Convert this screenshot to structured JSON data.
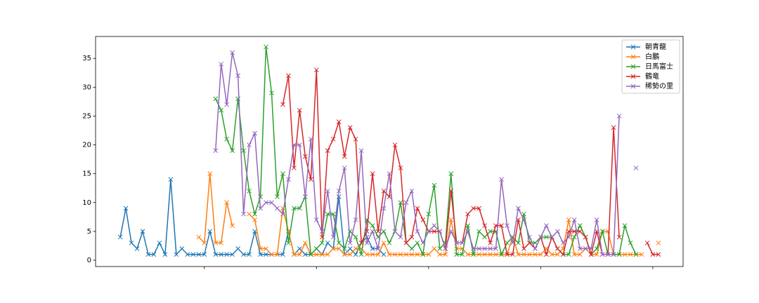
{
  "chart_data": {
    "type": "line",
    "x": [
      5,
      6,
      7,
      8,
      9,
      10,
      11,
      12,
      13,
      14,
      15,
      16,
      17,
      18,
      19,
      20,
      21,
      22,
      23,
      24,
      25,
      26,
      27,
      28,
      29,
      30,
      31,
      32,
      33,
      34,
      35,
      36,
      37,
      38,
      39,
      40,
      41,
      42,
      43,
      44,
      45,
      46,
      47,
      48,
      49,
      50,
      51,
      52,
      53,
      54,
      55,
      56,
      57,
      58,
      59,
      60,
      61,
      62,
      63,
      64,
      65,
      66,
      67,
      68,
      69,
      70,
      71,
      72,
      73,
      74,
      75,
      76,
      77,
      78,
      79,
      80,
      81,
      82,
      83,
      84,
      85,
      86,
      87,
      88,
      89,
      90,
      91,
      92,
      93,
      94,
      95,
      96,
      97,
      98,
      99,
      100,
      101
    ],
    "series": [
      {
        "name": "朝青龍",
        "color": "#1f77b4",
        "values": [
          4,
          9,
          3,
          2,
          5,
          1,
          1,
          3,
          1,
          14,
          1,
          2,
          1,
          1,
          1,
          1,
          5,
          1,
          1,
          1,
          1,
          2,
          1,
          1,
          5,
          1,
          1,
          1,
          1,
          1,
          5,
          1,
          2,
          1,
          1,
          2,
          1,
          3,
          2,
          11,
          1,
          2,
          1,
          3,
          4,
          2,
          2,
          1,
          null,
          null,
          null,
          null,
          null,
          null,
          null,
          null,
          null,
          null,
          null,
          null,
          null,
          null,
          null,
          null,
          null,
          null,
          null,
          null,
          null,
          null,
          null,
          null,
          null,
          null,
          null,
          null,
          null,
          null,
          null,
          null,
          null,
          null,
          null,
          null,
          null,
          null,
          null,
          null,
          null,
          null,
          null,
          null,
          null,
          null,
          null,
          null,
          null
        ]
      },
      {
        "name": "白鵬",
        "color": "#ff7f0e",
        "values": [
          null,
          null,
          null,
          null,
          null,
          null,
          null,
          null,
          null,
          null,
          null,
          null,
          null,
          null,
          4,
          3,
          15,
          3,
          3,
          10,
          6,
          null,
          null,
          8,
          7,
          2,
          2,
          1,
          1,
          9,
          5,
          1,
          1,
          3,
          1,
          1,
          1,
          1,
          2,
          2,
          1,
          1,
          2,
          2,
          1,
          1,
          1,
          3,
          1,
          1,
          1,
          1,
          1,
          1,
          1,
          1,
          2,
          1,
          1,
          7,
          2,
          2,
          1,
          1,
          1,
          1,
          1,
          1,
          1,
          1,
          4,
          1,
          1,
          1,
          1,
          1,
          2,
          1,
          1,
          2,
          7,
          1,
          1,
          2,
          1,
          1,
          5,
          5,
          1,
          1,
          1,
          1,
          1,
          1,
          null,
          null,
          3
        ]
      },
      {
        "name": "日馬富士",
        "color": "#2ca02c",
        "values": [
          null,
          null,
          null,
          null,
          null,
          null,
          null,
          null,
          null,
          null,
          null,
          null,
          null,
          null,
          null,
          null,
          null,
          28,
          26,
          21,
          19,
          28,
          19,
          12,
          8,
          11,
          37,
          29,
          11,
          15,
          3,
          9,
          9,
          11,
          1,
          2,
          3,
          8,
          8,
          3,
          2,
          5,
          4,
          1,
          7,
          6,
          4,
          5,
          3,
          5,
          10,
          3,
          2,
          3,
          1,
          8,
          13,
          2,
          3,
          15,
          1,
          1,
          6,
          1,
          5,
          4,
          5,
          5,
          1,
          3,
          4,
          3,
          8,
          3,
          3,
          4,
          4,
          4,
          2,
          1,
          1,
          4,
          6,
          4,
          1,
          2,
          5,
          1,
          1,
          1,
          6,
          3,
          1,
          null,
          null,
          null,
          null
        ]
      },
      {
        "name": "鶴竜",
        "color": "#d62728",
        "values": [
          null,
          null,
          null,
          null,
          null,
          null,
          null,
          null,
          null,
          null,
          null,
          null,
          null,
          null,
          null,
          null,
          null,
          null,
          null,
          null,
          null,
          null,
          null,
          null,
          null,
          null,
          null,
          null,
          null,
          27,
          32,
          16,
          26,
          18,
          14,
          33,
          4,
          19,
          21,
          24,
          18,
          23,
          21,
          3,
          5,
          15,
          5,
          12,
          11,
          20,
          16,
          3,
          4,
          9,
          7,
          5,
          5,
          5,
          2,
          12,
          3,
          3,
          8,
          9,
          9,
          6,
          3,
          6,
          6,
          1,
          1,
          7,
          2,
          3,
          2,
          4,
          1,
          4,
          2,
          1,
          5,
          5,
          5,
          4,
          1,
          5,
          1,
          1,
          23,
          4,
          null,
          null,
          null,
          null,
          3,
          1,
          1
        ]
      },
      {
        "name": "稀勢の里",
        "color": "#9467bd",
        "values": [
          null,
          null,
          null,
          null,
          null,
          null,
          null,
          null,
          null,
          null,
          null,
          null,
          null,
          null,
          null,
          null,
          null,
          19,
          34,
          27,
          36,
          32,
          8,
          20,
          22,
          9,
          10,
          10,
          9,
          8,
          14,
          20,
          20,
          11,
          21,
          7,
          5,
          12,
          4,
          12,
          16,
          3,
          7,
          19,
          3,
          5,
          2,
          9,
          15,
          5,
          4,
          10,
          12,
          5,
          3,
          5,
          6,
          5,
          2,
          5,
          3,
          3,
          5,
          2,
          2,
          2,
          2,
          2,
          14,
          6,
          3,
          9,
          7,
          4,
          2,
          4,
          6,
          4,
          5,
          3,
          4,
          7,
          2,
          2,
          2,
          7,
          1,
          1,
          1,
          25,
          null,
          null,
          16,
          null,
          null,
          null,
          null
        ]
      }
    ],
    "xlim": [
      0.6,
      105.4
    ],
    "xticks": [
      20,
      40,
      60,
      80,
      100
    ],
    "ylim": [
      -1.1,
      38.8
    ],
    "yticks": [
      0,
      5,
      10,
      15,
      20,
      25,
      30,
      35
    ],
    "legend": "upper right"
  }
}
